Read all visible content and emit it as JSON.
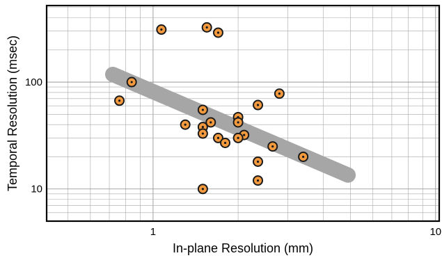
{
  "chart_data": {
    "type": "scatter",
    "xlabel": "In-plane Resolution (mm)",
    "ylabel": "Temporal Resolution (msec)",
    "xscale": "log",
    "yscale": "log",
    "xlim": [
      0.42,
      10.3
    ],
    "ylim": [
      5,
      520
    ],
    "x_tick_labels": [
      {
        "value": 1,
        "label": "1"
      },
      {
        "value": 10,
        "label": "10"
      }
    ],
    "y_tick_labels": [
      {
        "value": 10,
        "label": "10"
      },
      {
        "value": 100,
        "label": "100"
      }
    ],
    "grid": true,
    "colors": {
      "point_fill": "#f39a3f",
      "point_edge": "#1a1a1a",
      "trend_band": "#a6a6a6"
    },
    "trend_band": {
      "x": [
        0.72,
        4.9
      ],
      "y": [
        118,
        13.5
      ]
    },
    "points": [
      {
        "x": 1.07,
        "y": 310
      },
      {
        "x": 1.55,
        "y": 325
      },
      {
        "x": 1.7,
        "y": 290
      },
      {
        "x": 0.84,
        "y": 100
      },
      {
        "x": 0.76,
        "y": 67
      },
      {
        "x": 2.8,
        "y": 78
      },
      {
        "x": 2.35,
        "y": 61
      },
      {
        "x": 1.5,
        "y": 55
      },
      {
        "x": 2.0,
        "y": 47
      },
      {
        "x": 2.0,
        "y": 42
      },
      {
        "x": 1.6,
        "y": 42
      },
      {
        "x": 1.3,
        "y": 40
      },
      {
        "x": 1.5,
        "y": 38
      },
      {
        "x": 1.5,
        "y": 33
      },
      {
        "x": 2.1,
        "y": 32
      },
      {
        "x": 1.7,
        "y": 30
      },
      {
        "x": 2.0,
        "y": 30
      },
      {
        "x": 1.8,
        "y": 27
      },
      {
        "x": 2.65,
        "y": 25
      },
      {
        "x": 3.4,
        "y": 20
      },
      {
        "x": 2.35,
        "y": 18
      },
      {
        "x": 2.35,
        "y": 12
      },
      {
        "x": 1.5,
        "y": 10
      }
    ]
  }
}
